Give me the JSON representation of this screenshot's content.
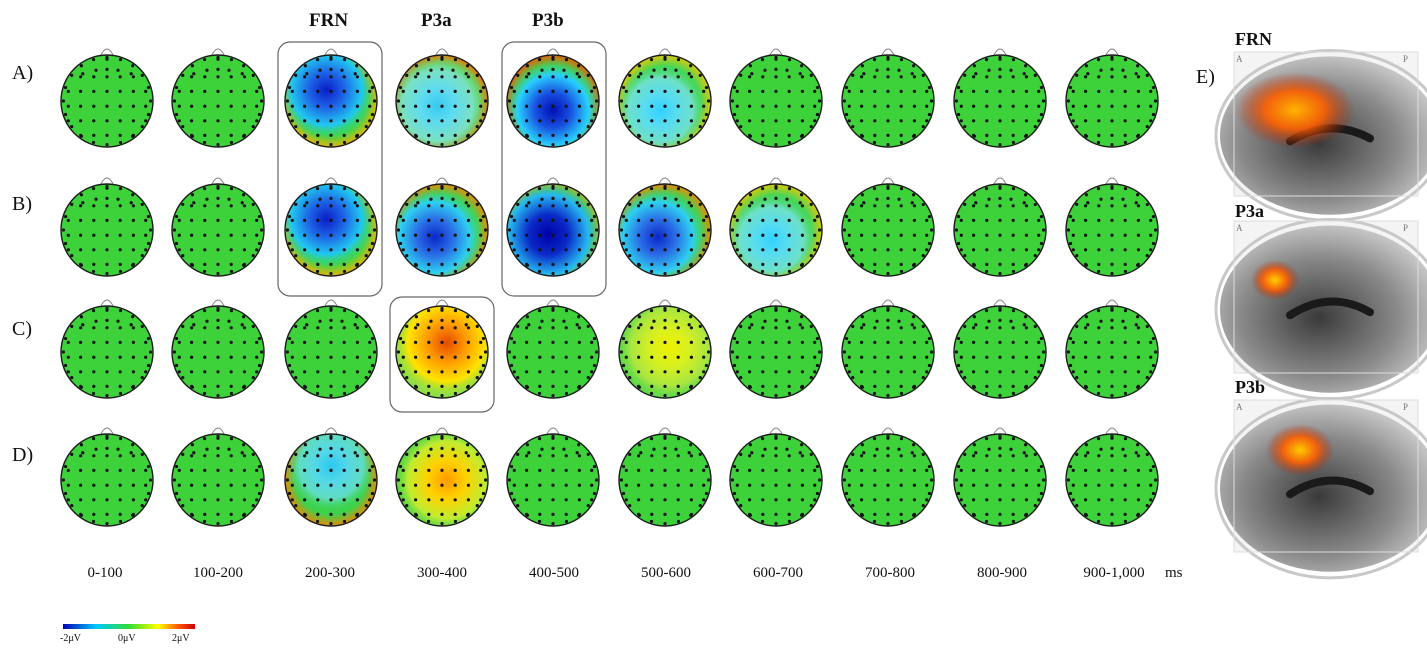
{
  "rows": [
    {
      "label": "A)",
      "maps": [
        "g",
        "g",
        "fneg",
        "amix",
        "pneg",
        "mild",
        "g",
        "g",
        "g",
        "g"
      ]
    },
    {
      "label": "B)",
      "maps": [
        "g",
        "g",
        "fneg",
        "cneg",
        "cnegs",
        "cneg",
        "mild",
        "g",
        "g",
        "g"
      ]
    },
    {
      "label": "C)",
      "maps": [
        "g",
        "g",
        "g",
        "fpos",
        "g",
        "ypos",
        "g",
        "g",
        "g",
        "g"
      ]
    },
    {
      "label": "D)",
      "maps": [
        "g",
        "g",
        "tcyan",
        "ypos2",
        "g",
        "g",
        "g",
        "g",
        "g",
        "g"
      ]
    }
  ],
  "time_windows": [
    "0-100",
    "100-200",
    "200-300",
    "300-400",
    "400-500",
    "500-600",
    "600-700",
    "700-800",
    "800-900",
    "900-1,000"
  ],
  "time_unit": "ms",
  "components": [
    {
      "name": "FRN",
      "column": 2
    },
    {
      "name": "P3a",
      "column": 3
    },
    {
      "name": "P3b",
      "column": 4
    }
  ],
  "colorbar": {
    "min_label": "-2μV",
    "mid_label": "0μV",
    "max_label": "2μV",
    "colors": [
      "#0000b4",
      "#00c8ff",
      "#32dc32",
      "#ffff00",
      "#ff5000",
      "#c80000"
    ]
  },
  "panel_e": {
    "label": "E)",
    "images": [
      {
        "title": "FRN",
        "left": "A",
        "right": "P"
      },
      {
        "title": "P3a",
        "left": "A",
        "right": "P"
      },
      {
        "title": "P3b",
        "left": "A",
        "right": "P"
      }
    ]
  }
}
